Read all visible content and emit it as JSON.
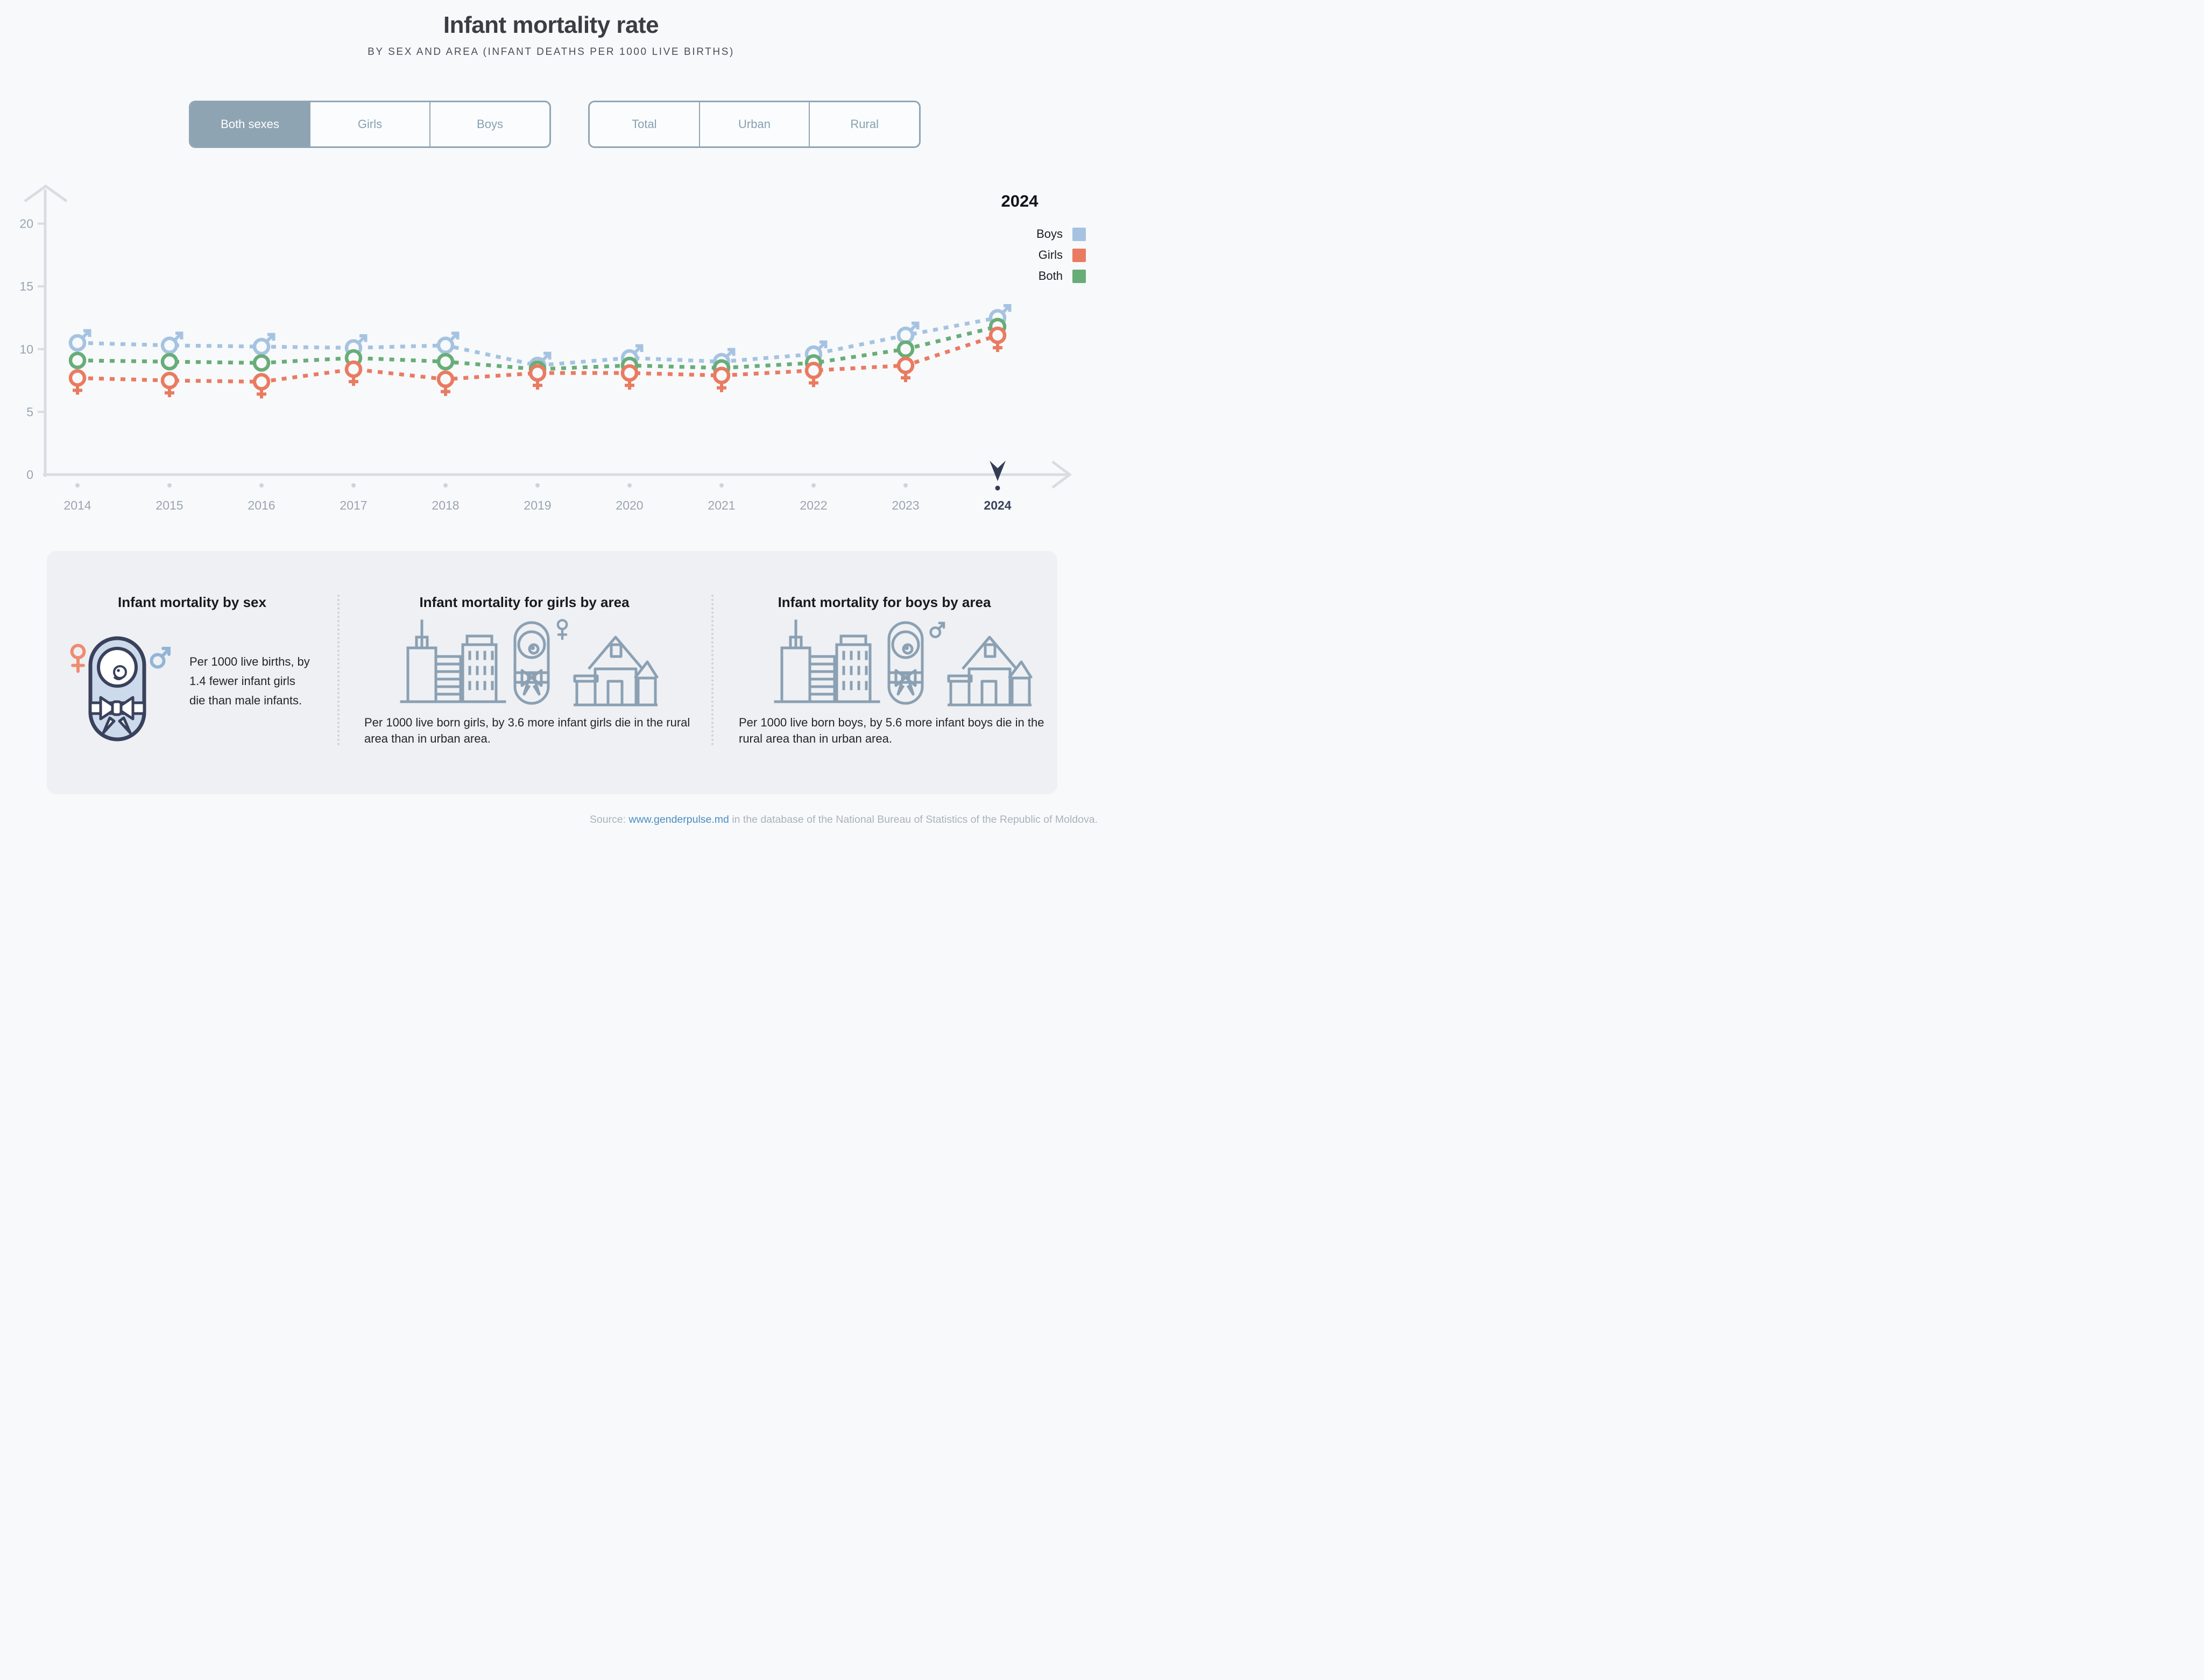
{
  "title": "Infant mortality rate",
  "subtitle": "BY SEX AND AREA (INFANT DEATHS PER 1000 LIVE BIRTHS)",
  "toggles": {
    "sex": {
      "options": [
        "Both sexes",
        "Girls",
        "Boys"
      ],
      "selected": "Both sexes"
    },
    "area": {
      "options": [
        "Total",
        "Urban",
        "Rural"
      ],
      "selected": ""
    }
  },
  "legend": {
    "year": "2024",
    "items": [
      {
        "label": "Boys",
        "color": "#a5c3e1"
      },
      {
        "label": "Girls",
        "color": "#e97b61"
      },
      {
        "label": "Both",
        "color": "#68ad78"
      }
    ]
  },
  "chart_data": {
    "type": "line",
    "title": "Infant mortality rate by sex (infant deaths per 1000 live births)",
    "x": [
      2014,
      2015,
      2016,
      2017,
      2018,
      2019,
      2020,
      2021,
      2022,
      2023,
      2024
    ],
    "series": [
      {
        "name": "Boys",
        "symbol": "male",
        "color": "#a5c3e1",
        "values": [
          10.5,
          10.3,
          10.2,
          10.1,
          10.3,
          8.7,
          9.3,
          9.0,
          9.6,
          11.1,
          12.5
        ]
      },
      {
        "name": "Girls",
        "symbol": "female",
        "color": "#e97b61",
        "values": [
          7.7,
          7.5,
          7.4,
          8.4,
          7.6,
          8.1,
          8.1,
          7.9,
          8.3,
          8.7,
          11.1
        ]
      },
      {
        "name": "Both",
        "symbol": "circle",
        "color": "#68ad78",
        "values": [
          9.1,
          9.0,
          8.9,
          9.3,
          9.0,
          8.4,
          8.7,
          8.5,
          8.9,
          10.0,
          11.8
        ]
      }
    ],
    "xlabel": "",
    "ylabel": "",
    "ylim": [
      0,
      20
    ],
    "yticks": [
      0,
      5,
      10,
      15,
      20
    ],
    "grid": false,
    "legend_position": "top-right",
    "highlight_year": 2024
  },
  "cards": [
    {
      "title": "Infant mortality by sex",
      "text": "Per 1000 live births, by 1.4 fewer infant girls die than male infants."
    },
    {
      "title": "Infant mortality for girls by area",
      "text": "Per 1000 live born girls, by 3.6 more infant girls die in the rural area than in urban area."
    },
    {
      "title": "Infant mortality for boys by area",
      "text": "Per 1000 live born boys, by 5.6 more infant boys die in the rural area than in urban area."
    }
  ],
  "source": {
    "prefix": "Source: ",
    "link": "www.genderpulse.md",
    "suffix": " in the database of the National Bureau of Statistics of the Republic of Moldova."
  },
  "colors": {
    "background": "#f8f9fb",
    "card_background": "#eef0f3",
    "axis": "#d8dde2",
    "axis_label": "#9aa5b0",
    "highlight_navy": "#333c55",
    "button_selected": "#8ea4b3",
    "button_text": "#87a0b1",
    "icon_outline": "#8ba0b3",
    "baby_fill": "#ccdaeb",
    "baby_outline": "#39415c",
    "female_accent": "#ef8b70",
    "male_accent": "#92b4d6"
  }
}
